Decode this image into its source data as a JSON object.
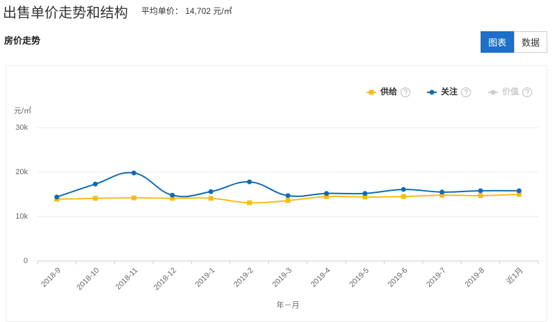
{
  "header": {
    "title": "出售单价走势和结构",
    "avg_label": "平均单价：",
    "avg_value": "14,702 元/㎡"
  },
  "section": {
    "title": "房价走势",
    "tabs": [
      "图表",
      "数据"
    ]
  },
  "chart_data": {
    "type": "line",
    "y_unit": "元/㎡",
    "x_label": "年－月",
    "categories": [
      "2018-9",
      "2018-10",
      "2018-11",
      "2018-12",
      "2019-1",
      "2019-2",
      "2019-3",
      "2019-4",
      "2019-5",
      "2019-6",
      "2019-7",
      "2019-8",
      "近1月"
    ],
    "series": [
      {
        "name": "供给",
        "color": "#f6bd16",
        "marker": "square",
        "values": [
          13900,
          14100,
          14200,
          14100,
          14100,
          13100,
          13600,
          14500,
          14400,
          14500,
          14800,
          14700,
          15000
        ]
      },
      {
        "name": "关注",
        "color": "#0f6bb4",
        "marker": "circle",
        "values": [
          14400,
          17300,
          19800,
          14800,
          15600,
          17800,
          14700,
          15200,
          15200,
          16100,
          15500,
          15800,
          15800
        ]
      },
      {
        "name": "价值",
        "color": "#cccccc",
        "marker": "circle",
        "hidden": true,
        "values": [
          null,
          null,
          null,
          null,
          null,
          null,
          null,
          null,
          null,
          null,
          null,
          null,
          null
        ]
      }
    ],
    "ylim": [
      0,
      30000
    ],
    "yticks": [
      0,
      {
        "value": 10000,
        "label": "10k"
      },
      {
        "value": 20000,
        "label": "20k"
      },
      {
        "value": 30000,
        "label": "30k"
      }
    ],
    "grid": true
  }
}
